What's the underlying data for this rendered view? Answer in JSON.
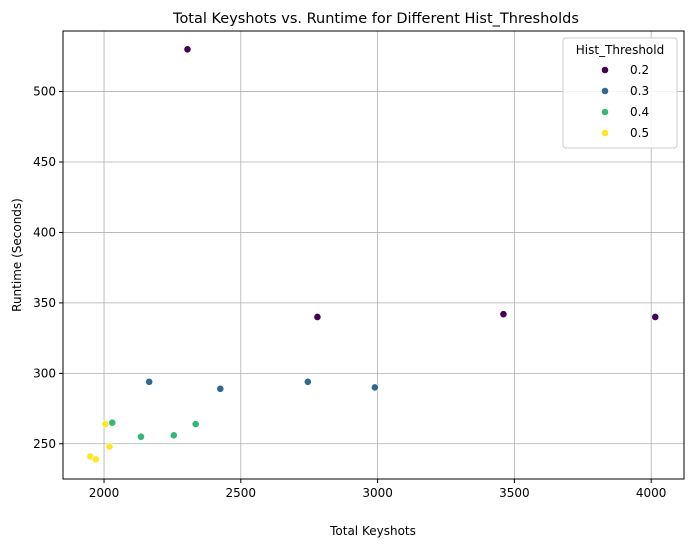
{
  "chart_data": {
    "type": "scatter",
    "title": "Total Keyshots vs. Runtime for Different Hist_Thresholds",
    "xlabel": "Total Keyshots",
    "ylabel": "Runtime (Seconds)",
    "xlim": [
      1850,
      4120
    ],
    "ylim": [
      225,
      543
    ],
    "xticks": [
      2000,
      2500,
      3000,
      3500,
      4000
    ],
    "yticks": [
      250,
      300,
      350,
      400,
      450,
      500
    ],
    "grid": true,
    "legend": {
      "title": "Hist_Threshold",
      "placement": "top-right"
    },
    "series": [
      {
        "name": "0.2",
        "color": "#440154",
        "points": [
          [
            2305,
            530
          ],
          [
            2780,
            340
          ],
          [
            3460,
            342
          ],
          [
            4015,
            340
          ]
        ]
      },
      {
        "name": "0.3",
        "color": "#31688e",
        "points": [
          [
            2165,
            294
          ],
          [
            2425,
            289
          ],
          [
            2745,
            294
          ],
          [
            2990,
            290
          ]
        ]
      },
      {
        "name": "0.4",
        "color": "#35b779",
        "points": [
          [
            2030,
            265
          ],
          [
            2135,
            255
          ],
          [
            2255,
            256
          ],
          [
            2335,
            264
          ]
        ]
      },
      {
        "name": "0.5",
        "color": "#fde725",
        "points": [
          [
            1950,
            241
          ],
          [
            1970,
            239
          ],
          [
            2005,
            264
          ],
          [
            2020,
            248
          ]
        ]
      }
    ]
  }
}
